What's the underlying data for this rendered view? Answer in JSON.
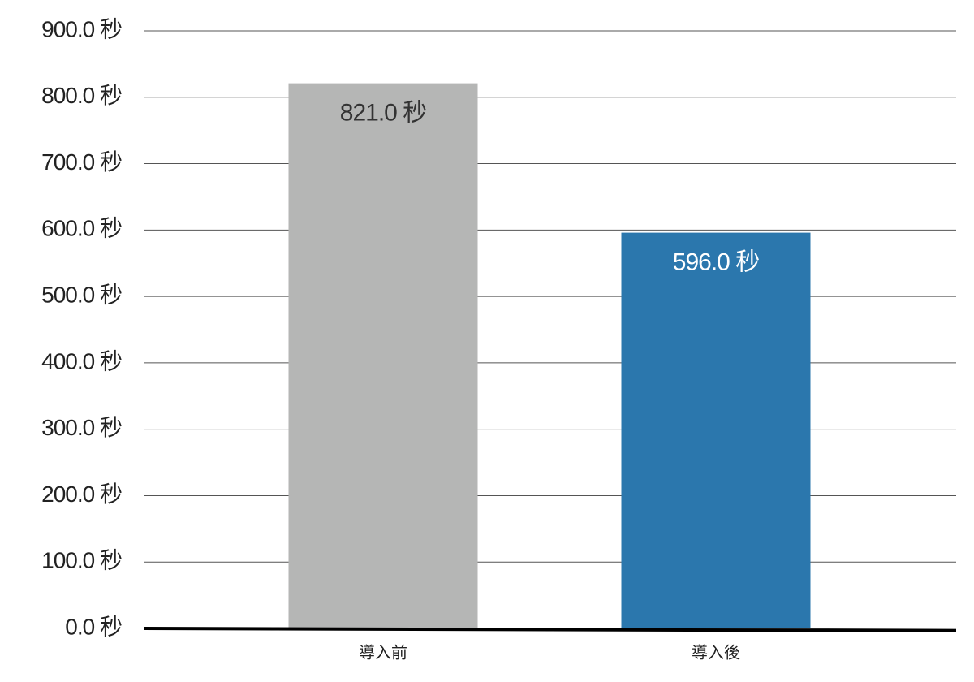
{
  "chart_data": {
    "type": "bar",
    "categories": [
      "導入前",
      "導入後"
    ],
    "values": [
      821,
      596
    ],
    "value_labels": [
      "821.0 秒",
      "596.0 秒"
    ],
    "colors": [
      "#b5b6b5",
      "#2b77ad"
    ],
    "value_label_colors": [
      "#333333",
      "#ffffff"
    ],
    "ylim": [
      0,
      900
    ],
    "yticks": [
      {
        "value": 0,
        "label": "0.0 秒"
      },
      {
        "value": 100,
        "label": "100.0 秒"
      },
      {
        "value": 200,
        "label": "200.0 秒"
      },
      {
        "value": 300,
        "label": "300.0 秒"
      },
      {
        "value": 400,
        "label": "400.0 秒"
      },
      {
        "value": 500,
        "label": "500.0 秒"
      },
      {
        "value": 600,
        "label": "600.0 秒"
      },
      {
        "value": 700,
        "label": "700.0 秒"
      },
      {
        "value": 800,
        "label": "800.0 秒"
      },
      {
        "value": 900,
        "label": "900.0 秒"
      }
    ],
    "grid": true
  }
}
